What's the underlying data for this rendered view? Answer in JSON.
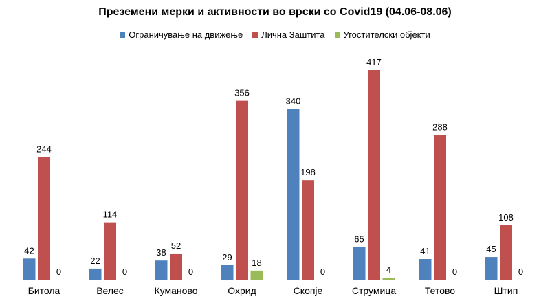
{
  "chart_data": {
    "type": "bar",
    "title": "Преземени мерки и активности во врски со Covid19 (04.06-08.06)",
    "categories": [
      "Битола",
      "Велес",
      "Куманово",
      "Охрид",
      "Скопје",
      "Струмица",
      "Тетово",
      "Штип"
    ],
    "series": [
      {
        "name": "Ограничување на движење",
        "color": "#4f81bd",
        "values": [
          42,
          22,
          38,
          29,
          340,
          65,
          41,
          45
        ]
      },
      {
        "name": "Лична Заштита",
        "color": "#c0504d",
        "values": [
          244,
          114,
          52,
          356,
          198,
          417,
          288,
          108
        ]
      },
      {
        "name": "Угостителски објекти",
        "color": "#9bbb59",
        "values": [
          0,
          0,
          0,
          18,
          0,
          4,
          0,
          0
        ]
      }
    ],
    "ylim": [
      0,
      417
    ],
    "legend_position": "top",
    "grid": false,
    "data_labels": true
  }
}
